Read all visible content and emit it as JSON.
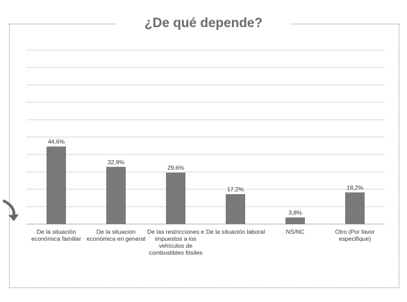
{
  "chart_data": {
    "type": "bar",
    "title": "¿De qué depende?",
    "categories": [
      "De la situación económica familiar",
      "De la situación económica en general",
      "De las restricciones e impuestos a los vehículos de combustibles fósiles",
      "De la situación laboral",
      "NS/NC",
      "Otro (Por favor especifique)"
    ],
    "values": [
      44.6,
      32.9,
      29.6,
      17.2,
      3.8,
      18.2
    ],
    "data_labels": [
      "44,6%",
      "32,9%",
      "29,6%",
      "17,2%",
      "3,8%",
      "18,2%"
    ],
    "ylim": [
      0,
      100
    ],
    "grid": true,
    "bar_color": "#7a7a7a"
  }
}
